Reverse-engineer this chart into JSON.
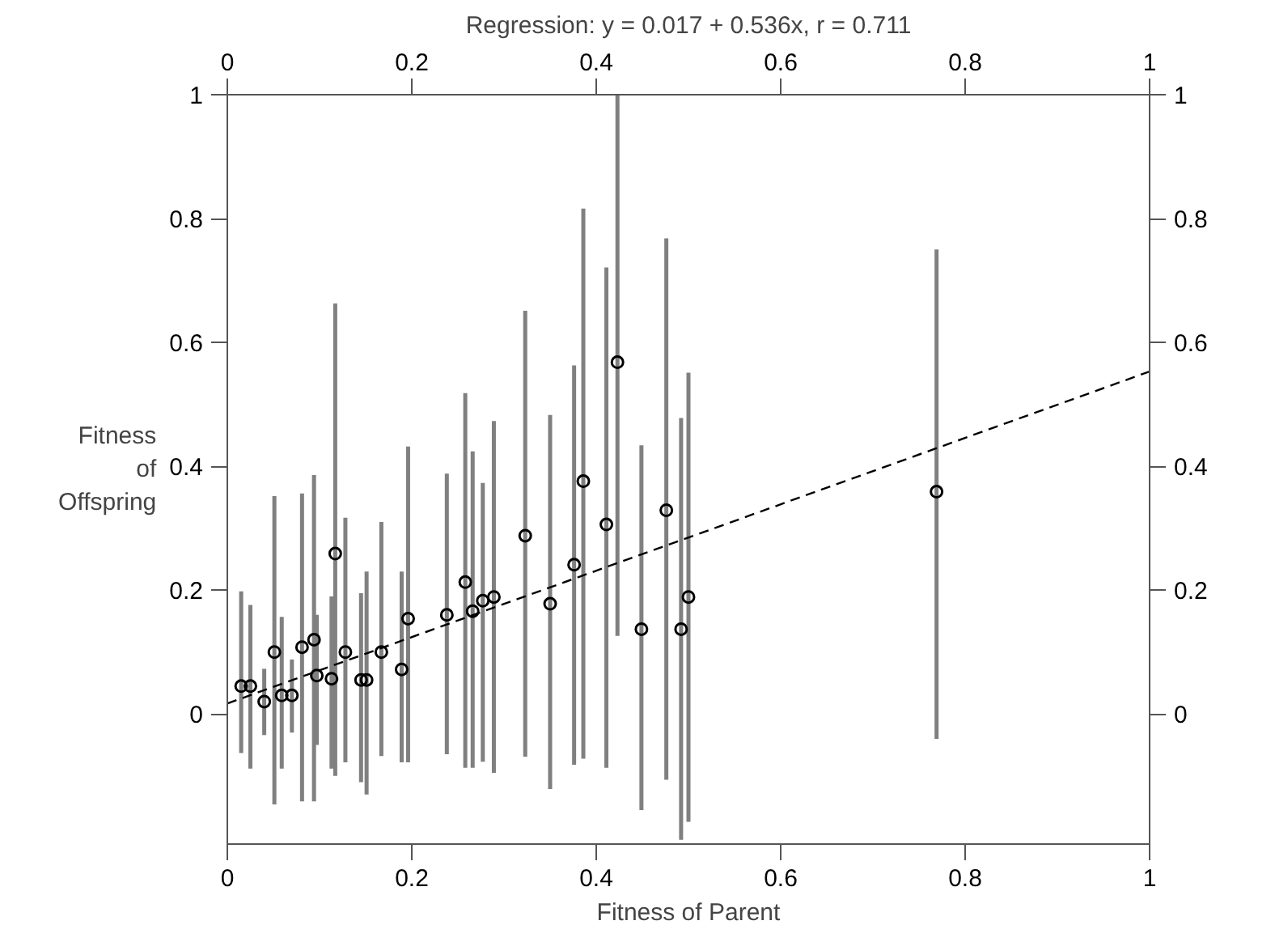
{
  "chart_data": {
    "type": "scatter",
    "title": "Regression: y = 0.017 + 0.536x, r = 0.711",
    "xlabel": "Fitness of Parent",
    "ylabel": "Fitness of Offspring",
    "xlim": [
      0,
      1
    ],
    "ylim": [
      -0.21,
      1
    ],
    "xticks": [
      0,
      0.2,
      0.4,
      0.6,
      0.8,
      1
    ],
    "yticks": [
      0,
      0.2,
      0.4,
      0.6,
      0.8,
      1
    ],
    "x2lim": [
      0,
      1
    ],
    "x2ticks": [
      0,
      0.2,
      0.4,
      0.6,
      0.8,
      1
    ],
    "y2lim": [
      -0.21,
      1
    ],
    "y2ticks": [
      0,
      0.2,
      0.4,
      0.6,
      0.8,
      1
    ],
    "grid": false,
    "marker": "circle",
    "series": [
      {
        "color": "#000000",
        "x": [
          0.015,
          0.025,
          0.04,
          0.051,
          0.059,
          0.07,
          0.081,
          0.094,
          0.097,
          0.113,
          0.117,
          0.128,
          0.145,
          0.151,
          0.167,
          0.189,
          0.196,
          0.238,
          0.258,
          0.266,
          0.277,
          0.289,
          0.323,
          0.35,
          0.376,
          0.386,
          0.411,
          0.423,
          0.449,
          0.476,
          0.492,
          0.5,
          0.769
        ],
        "values": [
          0.045,
          0.045,
          0.02,
          0.1,
          0.03,
          0.03,
          0.108,
          0.12,
          0.062,
          0.057,
          0.259,
          0.1,
          0.055,
          0.055,
          0.1,
          0.072,
          0.154,
          0.16,
          0.213,
          0.166,
          0.183,
          0.189,
          0.288,
          0.178,
          0.241,
          0.376,
          0.306,
          0.568,
          0.137,
          0.329,
          0.137,
          0.189,
          0.359
        ],
        "errors": [
          [
            -0.063,
            0.198
          ],
          [
            -0.088,
            0.176
          ],
          [
            -0.034,
            0.073
          ],
          [
            -0.146,
            0.352
          ],
          [
            -0.088,
            0.157
          ],
          [
            -0.03,
            0.088
          ],
          [
            -0.141,
            0.356
          ],
          [
            -0.141,
            0.386
          ],
          [
            -0.05,
            0.16
          ],
          [
            -0.088,
            0.19
          ],
          [
            -0.1,
            0.663
          ],
          [
            -0.078,
            0.317
          ],
          [
            -0.11,
            0.195
          ],
          [
            -0.13,
            0.23
          ],
          [
            -0.068,
            0.31
          ],
          [
            -0.078,
            0.23
          ],
          [
            -0.078,
            0.432
          ],
          [
            -0.065,
            0.388
          ],
          [
            -0.087,
            0.518
          ],
          [
            -0.087,
            0.424
          ],
          [
            -0.077,
            0.373
          ],
          [
            -0.095,
            0.473
          ],
          [
            -0.069,
            0.651
          ],
          [
            -0.121,
            0.483
          ],
          [
            -0.082,
            0.563
          ],
          [
            -0.072,
            0.816
          ],
          [
            -0.087,
            0.721
          ],
          [
            0.126,
            1.0
          ],
          [
            -0.155,
            0.434
          ],
          [
            -0.106,
            0.768
          ],
          [
            -0.203,
            0.478
          ],
          [
            -0.174,
            0.551
          ],
          [
            -0.04,
            0.75
          ]
        ]
      },
      {
        "type": "line",
        "color": "#000000",
        "line_style": "dashed",
        "marker": "none",
        "x": [
          0,
          1
        ],
        "values": [
          0.017,
          0.553
        ]
      }
    ]
  }
}
